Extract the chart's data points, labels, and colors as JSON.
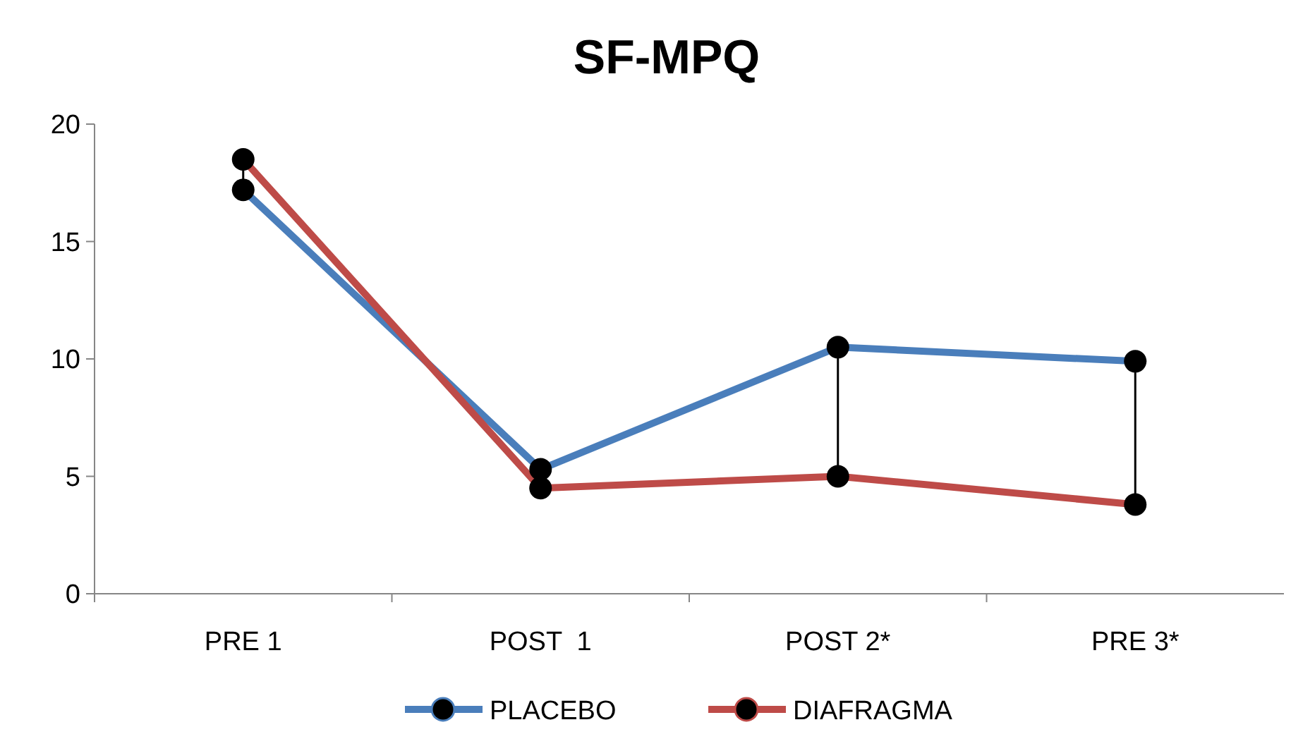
{
  "chart_data": {
    "type": "line",
    "title": "SF-MPQ",
    "categories": [
      "PRE 1",
      "POST  1",
      "POST 2*",
      "PRE 3*"
    ],
    "series": [
      {
        "name": "PLACEBO",
        "color": "#4a7ebb",
        "values": [
          17.2,
          5.3,
          10.5,
          9.9
        ]
      },
      {
        "name": "DIAFRAGMA",
        "color": "#be4b48",
        "values": [
          18.5,
          4.5,
          5.0,
          3.8
        ]
      }
    ],
    "ylim": [
      0,
      20
    ],
    "yticks": [
      0,
      5,
      10,
      15,
      20
    ],
    "grid": false,
    "legend": "bottom",
    "marker": "circle",
    "line_style": "solid"
  }
}
